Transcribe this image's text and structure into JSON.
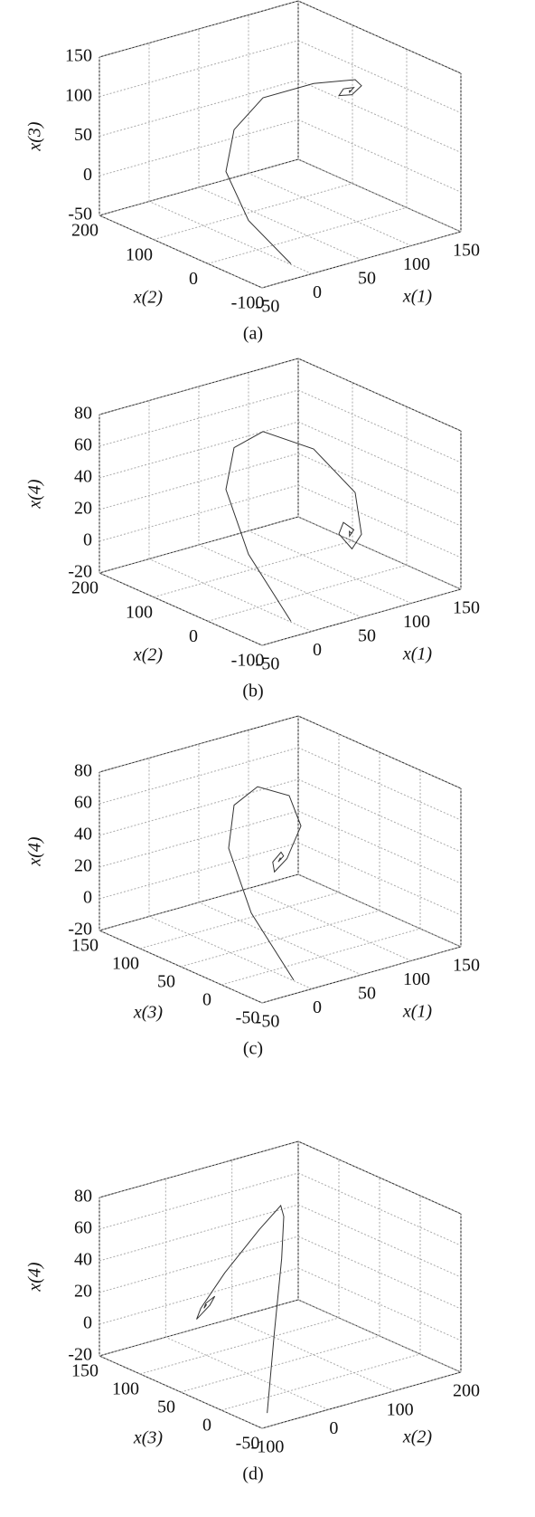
{
  "chart_data": [
    {
      "type": "line3d",
      "caption": "(a)",
      "xlabel": "x(1)",
      "ylabel": "x(2)",
      "zlabel": "x(3)",
      "xlim": [
        -50,
        150
      ],
      "ylim": [
        -100,
        200
      ],
      "zlim": [
        -50,
        150
      ],
      "xticks": [
        -50,
        0,
        50,
        100,
        150
      ],
      "yticks": [
        -100,
        0,
        100,
        200
      ],
      "zticks": [
        -50,
        0,
        50,
        100,
        150
      ],
      "color": "#333333",
      "grid": true,
      "x": [
        -10,
        -20,
        -10,
        20,
        60,
        100,
        120,
        110,
        95,
        90,
        100,
        105,
        98,
        100,
        101
      ],
      "y": [
        -80,
        -20,
        40,
        80,
        100,
        80,
        40,
        10,
        0,
        15,
        25,
        15,
        10,
        14,
        12
      ],
      "z": [
        -40,
        0,
        40,
        70,
        90,
        100,
        110,
        115,
        112,
        108,
        110,
        113,
        111,
        111,
        111
      ]
    },
    {
      "type": "line3d",
      "caption": "(b)",
      "xlabel": "x(1)",
      "ylabel": "x(2)",
      "zlabel": "x(4)",
      "xlim": [
        -50,
        150
      ],
      "ylim": [
        -100,
        200
      ],
      "zlim": [
        -20,
        80
      ],
      "xticks": [
        -50,
        0,
        50,
        100,
        150
      ],
      "yticks": [
        -100,
        0,
        100,
        200
      ],
      "zticks": [
        -20,
        0,
        20,
        40,
        60,
        80
      ],
      "color": "#333333",
      "grid": true,
      "x": [
        -10,
        -20,
        -10,
        20,
        60,
        100,
        120,
        110,
        95,
        90,
        100,
        105,
        98,
        100,
        101
      ],
      "y": [
        -80,
        -20,
        40,
        80,
        100,
        80,
        40,
        10,
        0,
        15,
        25,
        15,
        10,
        14,
        12
      ],
      "z": [
        -15,
        20,
        50,
        65,
        65,
        50,
        25,
        5,
        0,
        8,
        12,
        8,
        6,
        8,
        7
      ]
    },
    {
      "type": "line3d",
      "caption": "(c)",
      "xlabel": "x(1)",
      "ylabel": "x(3)",
      "zlabel": "x(4)",
      "xlim": [
        -50,
        150
      ],
      "ylim": [
        -50,
        150
      ],
      "zlim": [
        -20,
        80
      ],
      "xticks": [
        -50,
        0,
        50,
        100,
        150
      ],
      "yticks": [
        -50,
        0,
        50,
        100,
        150
      ],
      "zticks": [
        -20,
        0,
        20,
        40,
        60,
        80
      ],
      "color": "#333333",
      "grid": true,
      "x": [
        -10,
        -20,
        -10,
        20,
        60,
        100,
        120,
        110,
        95,
        90,
        100,
        105,
        98,
        100,
        101
      ],
      "y": [
        -40,
        0,
        40,
        70,
        90,
        100,
        110,
        115,
        112,
        108,
        110,
        113,
        111,
        111,
        111
      ],
      "z": [
        -15,
        20,
        50,
        65,
        65,
        50,
        25,
        5,
        0,
        8,
        12,
        8,
        6,
        8,
        7
      ]
    },
    {
      "type": "line3d",
      "caption": "(d)",
      "xlabel": "x(2)",
      "ylabel": "x(3)",
      "zlabel": "x(4)",
      "xlim": [
        -100,
        200
      ],
      "ylim": [
        -50,
        150
      ],
      "zlim": [
        -20,
        80
      ],
      "xticks": [
        -100,
        0,
        100,
        200
      ],
      "yticks": [
        -50,
        0,
        50,
        100,
        150
      ],
      "zticks": [
        -20,
        0,
        20,
        40,
        60,
        80
      ],
      "color": "#333333",
      "grid": true,
      "x": [
        -80,
        -20,
        40,
        80,
        100,
        80,
        40,
        10,
        0,
        15,
        25,
        15,
        10,
        14,
        12
      ],
      "y": [
        -40,
        0,
        40,
        70,
        90,
        100,
        110,
        115,
        112,
        108,
        110,
        113,
        111,
        111,
        111
      ],
      "z": [
        -15,
        20,
        50,
        65,
        65,
        50,
        25,
        5,
        0,
        8,
        12,
        8,
        6,
        8,
        7
      ]
    }
  ]
}
